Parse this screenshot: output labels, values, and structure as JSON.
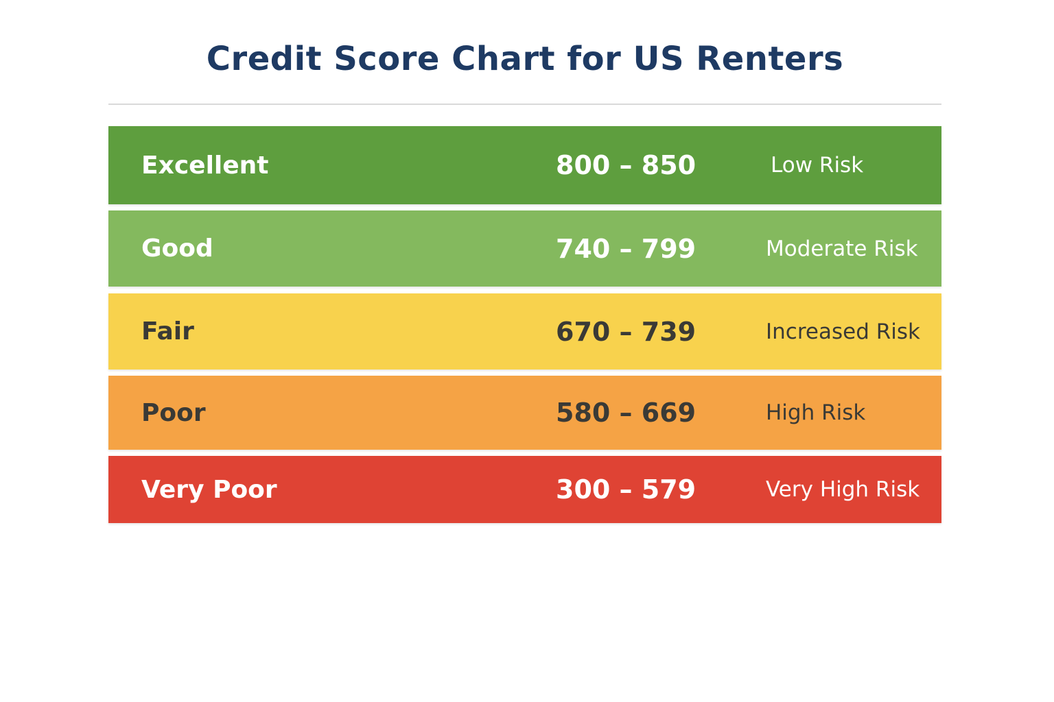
{
  "title": "Credit Score Chart for US Renters",
  "chart_data": {
    "type": "table",
    "columns": [
      "",
      "",
      ""
    ],
    "rows": [
      {
        "category": "Excellent",
        "range": "800 – 850",
        "risk": "Low Risk",
        "color": "#5e9e3e",
        "text_color": "#ffffff"
      },
      {
        "category": "Good",
        "range": "740 – 799",
        "risk": "Moderate Risk",
        "color": "#84b95e",
        "text_color": "#ffffff"
      },
      {
        "category": "Fair",
        "range": "670 – 739",
        "risk": "Increased Risk",
        "color": "#f8d24d",
        "text_color": "#3a3a36"
      },
      {
        "category": "Poor",
        "range": "580 – 669",
        "risk": "High Risk",
        "color": "#f5a345",
        "text_color": "#3a3a36"
      },
      {
        "category": "Very Poor",
        "range": "300 – 579",
        "risk": "Very High Risk",
        "color": "#df4334",
        "text_color": "#ffffff"
      }
    ]
  }
}
